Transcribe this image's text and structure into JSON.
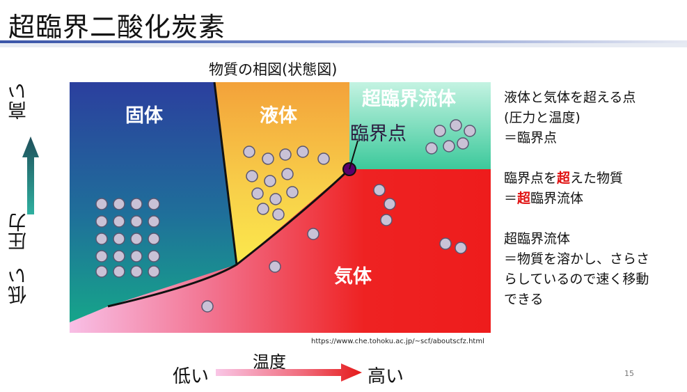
{
  "slide": {
    "title": "超臨界二酸化炭素",
    "page_number": "15"
  },
  "diagram": {
    "subtitle": "物質の相図(状態図)",
    "regions": {
      "solid": "固体",
      "liquid": "液体",
      "gas": "気体",
      "supercritical": "超臨界流体"
    },
    "critical_point_label": "臨界点",
    "source_url": "https://www.che.tohoku.ac.jp/~scf/aboutscfz.html",
    "y_axis": {
      "label": "圧力",
      "low": "低い",
      "high": "高い"
    },
    "x_axis": {
      "label": "温度",
      "low": "低い",
      "high": "高い"
    },
    "colors": {
      "solid_top": "#2a3f99",
      "solid_bottom": "#1aa38a",
      "liquid_top": "#f4a43a",
      "liquid_bottom": "#fbe94a",
      "gas": "#ee1c1c",
      "gas_low": "#f7b7e2",
      "supercritical_top": "#b8f0dc",
      "supercritical_bottom": "#3bc79a",
      "critical_point": "#5a006a",
      "axis_arrow": "#1f5c5c"
    }
  },
  "notes": {
    "block1": [
      "液体と気体を超える点",
      "(圧力と温度)",
      "＝臨界点"
    ],
    "block2": {
      "line1_pre": "臨界点を",
      "line1_em": "超",
      "line1_post": "えた物質",
      "line2_pre": "＝",
      "line2_em": "超",
      "line2_post": "臨界流体"
    },
    "block3": [
      "超臨界流体",
      "＝物質を溶かし、さらさ",
      "らしているので速く移動",
      "できる"
    ]
  }
}
